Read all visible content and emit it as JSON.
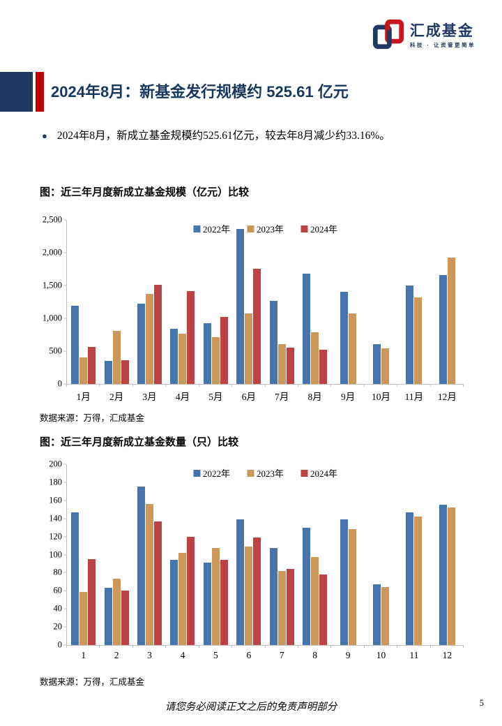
{
  "logo": {
    "name": "汇成基金",
    "tagline": "科技 · 让资管更简单"
  },
  "title_bar": {
    "text": "2024年8月：新基金发行规模约 525.61 亿元"
  },
  "bullet": {
    "marker": "●",
    "text": "2024年8月，新成立基金规模约525.61亿元，较去年8月减少约33.16%。"
  },
  "footer": {
    "disclaimer": "请您务必阅读正文之后的免责声明部分",
    "page_number": "5"
  },
  "colors": {
    "navy": "#1F3864",
    "red_accent": "#C00000",
    "bar_blue": "#4674AC",
    "bar_tan": "#CD9759",
    "bar_red": "#BE4243",
    "axis_gray": "#BFBFBF"
  },
  "chart_data": [
    {
      "type": "bar",
      "title": "图：近三年月度新成立基金规模（亿元）比较",
      "source": "数据来源：万得，汇成基金",
      "categories": [
        "1月",
        "2月",
        "3月",
        "4月",
        "5月",
        "6月",
        "7月",
        "8月",
        "9月",
        "10月",
        "11月",
        "12月"
      ],
      "series": [
        {
          "name": "2022年",
          "color": "#4674AC",
          "values": [
            1190,
            350,
            1225,
            845,
            925,
            2360,
            1270,
            1685,
            1400,
            605,
            1505,
            1655
          ]
        },
        {
          "name": "2023年",
          "color": "#CD9759",
          "values": [
            405,
            805,
            1375,
            765,
            710,
            1070,
            605,
            786,
            1070,
            545,
            1315,
            1930
          ]
        },
        {
          "name": "2024年",
          "color": "#BE4243",
          "values": [
            565,
            365,
            1515,
            1410,
            1020,
            1755,
            550,
            526,
            null,
            null,
            null,
            null
          ]
        }
      ],
      "ylim": [
        0,
        2500
      ],
      "ytick_step": 500,
      "legend_position": "top",
      "grid": false
    },
    {
      "type": "bar",
      "title": "图：近三年月度新成立基金数量（只）比较",
      "source": "数据来源：万得，汇成基金",
      "categories": [
        "1",
        "2",
        "3",
        "4",
        "5",
        "6",
        "7",
        "8",
        "9",
        "10",
        "11",
        "12"
      ],
      "series": [
        {
          "name": "2022年",
          "color": "#4674AC",
          "values": [
            147,
            63,
            175,
            94,
            91,
            139,
            107,
            130,
            139,
            67,
            147,
            155
          ]
        },
        {
          "name": "2023年",
          "color": "#CD9759",
          "values": [
            59,
            73,
            156,
            102,
            107,
            109,
            82,
            97,
            128,
            64,
            142,
            152
          ]
        },
        {
          "name": "2024年",
          "color": "#BE4243",
          "values": [
            95,
            60,
            137,
            120,
            94,
            119,
            84,
            78,
            null,
            null,
            null,
            null
          ]
        }
      ],
      "ylim": [
        0,
        200
      ],
      "ytick_step": 20,
      "legend_position": "top",
      "grid": false
    }
  ]
}
